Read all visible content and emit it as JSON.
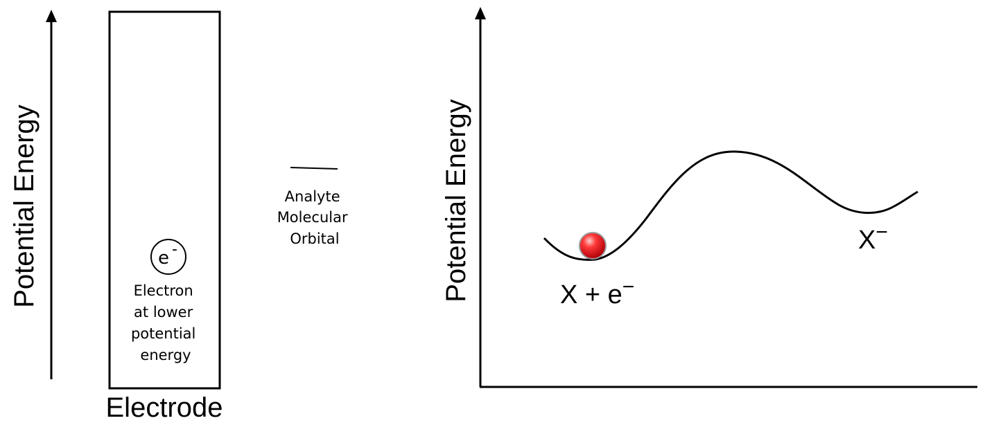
{
  "left_panel": {
    "y_axis_label": "Potential Energy",
    "electron_symbol": "e",
    "electron_charge": "-",
    "electron_caption": [
      "Electron",
      "at lower",
      "potential",
      "energy"
    ],
    "electrode_label": "Electrode"
  },
  "middle": {
    "orbital_caption": [
      "Analyte",
      "Molecular",
      "Orbital"
    ]
  },
  "right_panel": {
    "y_axis_label": "Potential Energy",
    "reactant_label": "X + e",
    "reactant_charge": "−",
    "product_label": "X",
    "product_charge": "−"
  },
  "colors": {
    "line": "#000000",
    "ball": "#e8141c",
    "ball_highlight": "#ffd0d0",
    "ball_outline": "#9a9a9a"
  }
}
